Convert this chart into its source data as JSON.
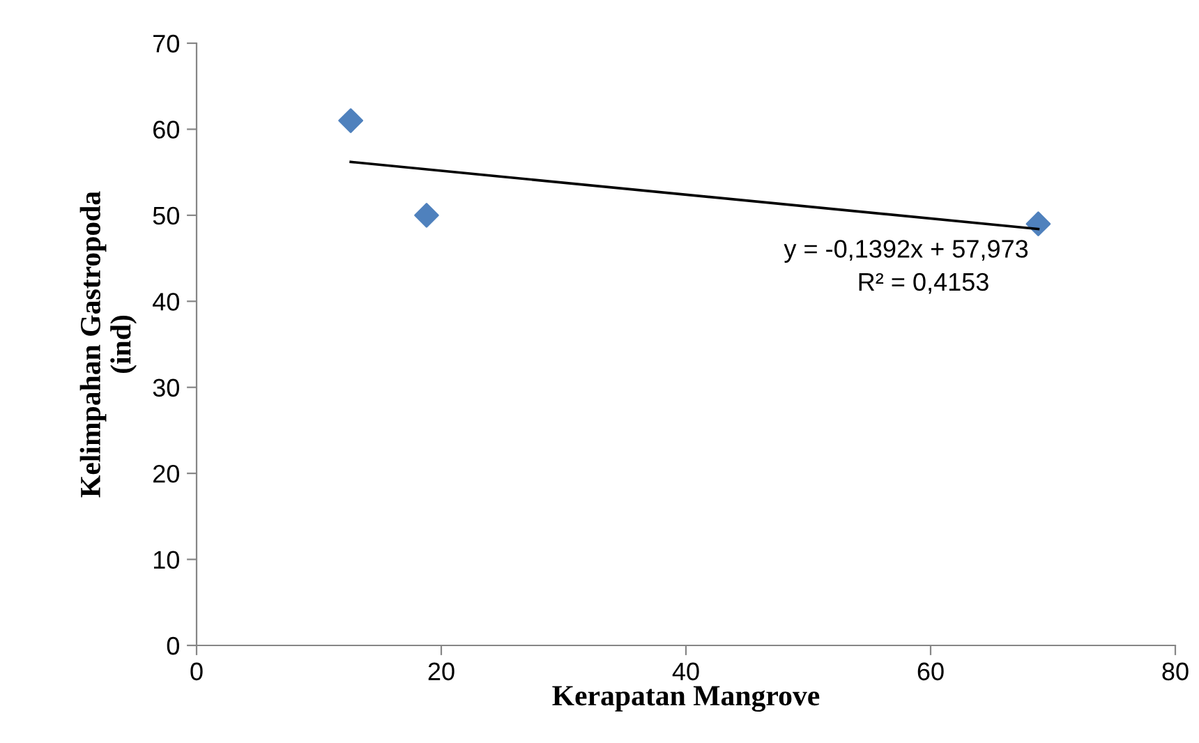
{
  "chart_data": {
    "type": "scatter",
    "xlabel": "Kerapatan Mangrove",
    "ylabel": "Kelimpahan Gastropoda\n(ind)",
    "series": [
      {
        "color": "#4f81bd",
        "x": [
          12.6,
          18.8,
          68.8
        ],
        "values": [
          61,
          50,
          49
        ],
        "marker": "diamond"
      },
      {
        "type": "line",
        "color": "#000000",
        "x": [
          12.6,
          68.8
        ],
        "values": [
          56.2,
          48.4
        ],
        "marker": "none",
        "line_style": "solid"
      }
    ],
    "annotations": [
      "y = -0,1392x + 57,973",
      "R² = 0,4153"
    ],
    "xlim": [
      0,
      80
    ],
    "xticks": [
      0,
      20,
      40,
      60,
      80
    ],
    "ylim": [
      0,
      70
    ],
    "yticks": [
      0,
      10,
      20,
      30,
      40,
      50,
      60,
      70
    ],
    "grid": false,
    "legend": false
  }
}
